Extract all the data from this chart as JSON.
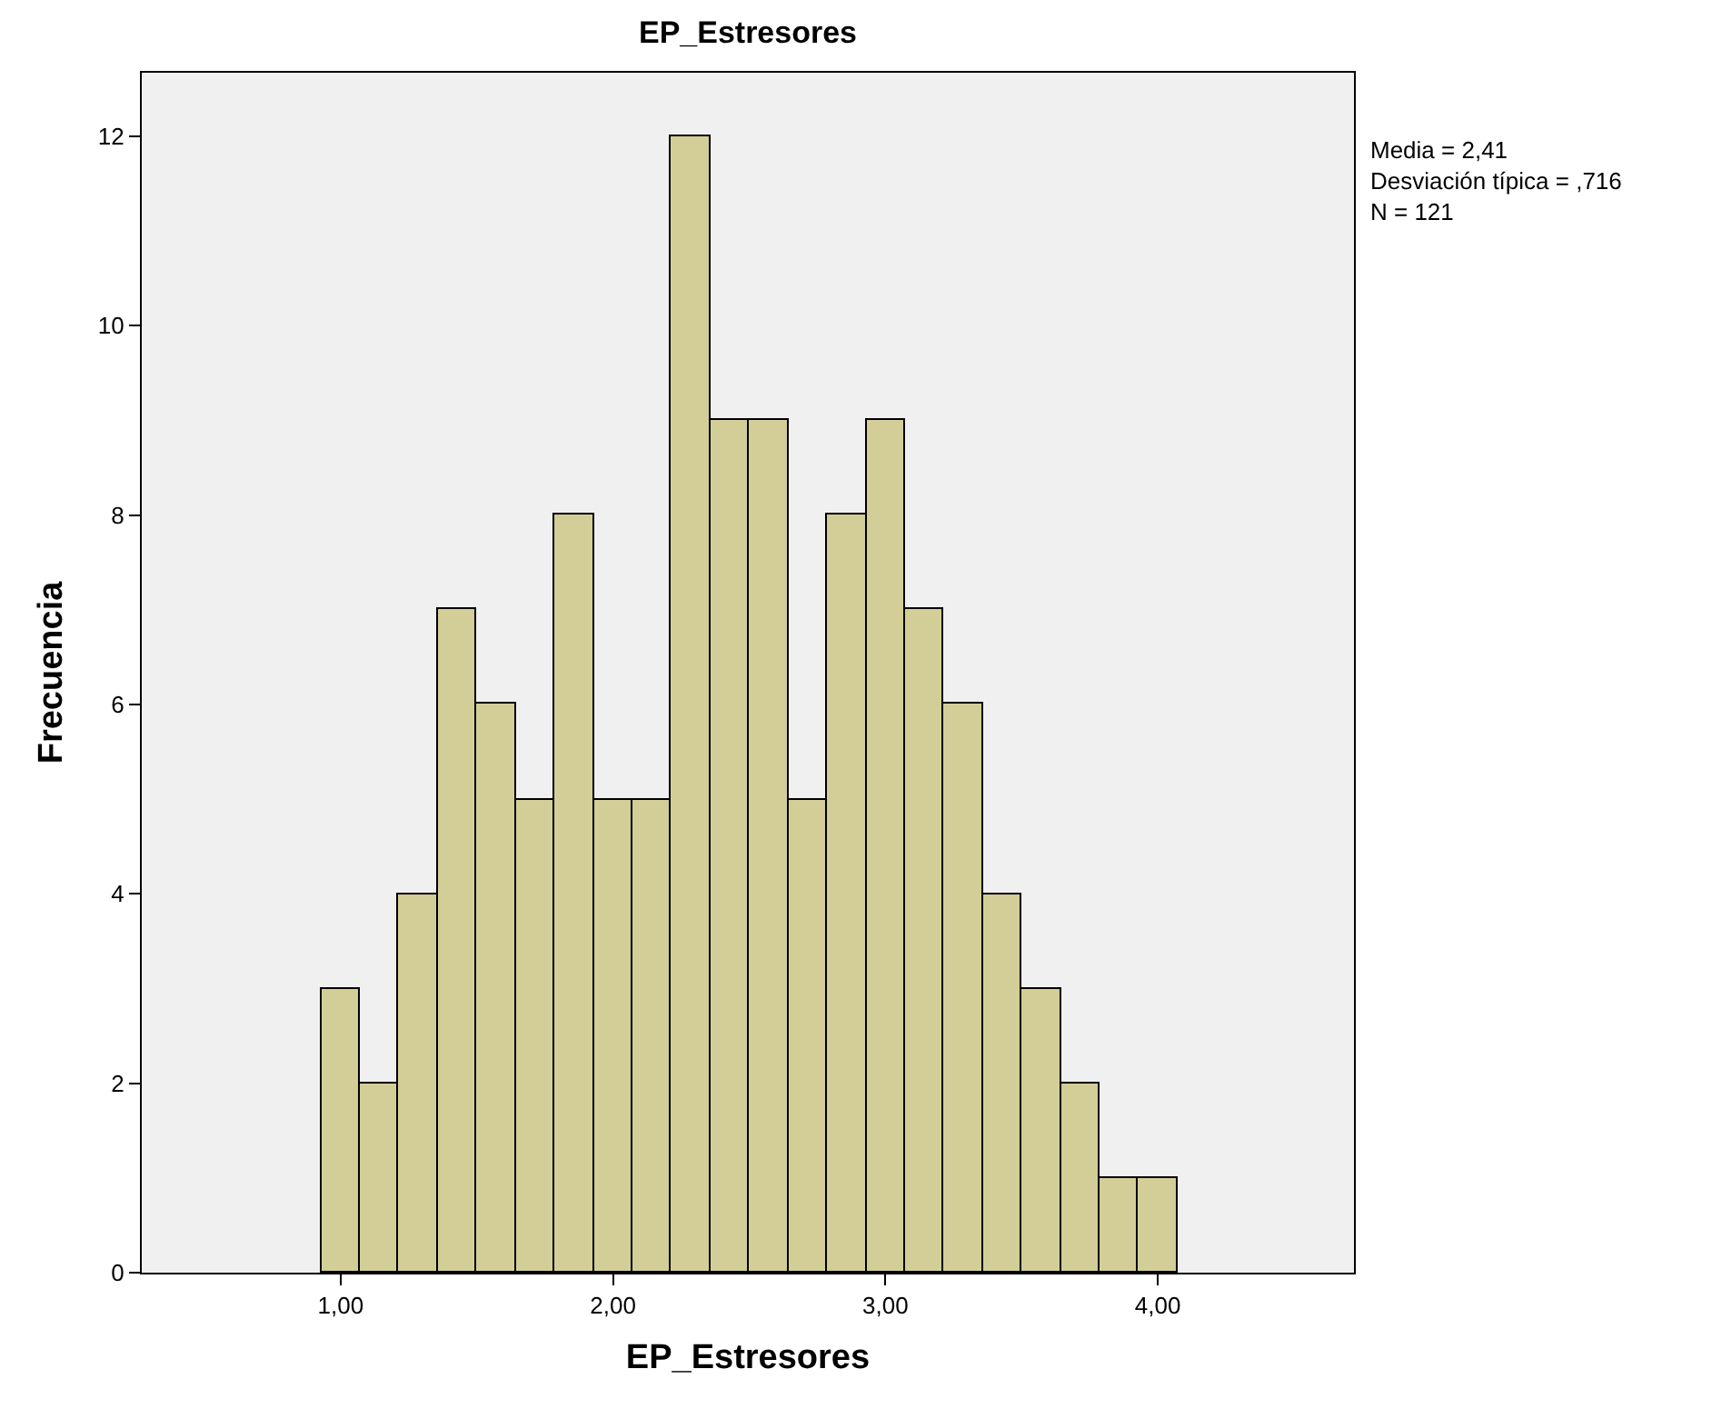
{
  "chart_data": {
    "type": "histogram",
    "title": "EP_Estresores",
    "xlabel": "EP_Estresores",
    "ylabel": "Frecuencia",
    "bins": [
      0.929,
      1.071,
      1.214,
      1.357,
      1.5,
      1.643,
      1.786,
      1.929,
      2.071,
      2.214,
      2.357,
      2.5,
      2.643,
      2.786,
      2.929,
      3.071,
      3.214,
      3.357,
      3.5,
      3.643,
      3.786,
      3.929,
      4.071
    ],
    "values": [
      3,
      2,
      4,
      7,
      6,
      5,
      8,
      5,
      5,
      12,
      9,
      9,
      5,
      8,
      9,
      7,
      6,
      4,
      3,
      2,
      1,
      1
    ],
    "color": "#d3ce97",
    "xlim": [
      0.27,
      4.72
    ],
    "xticks": [
      {
        "value": 1,
        "label": "1,00"
      },
      {
        "value": 2,
        "label": "2,00"
      },
      {
        "value": 3,
        "label": "3,00"
      },
      {
        "value": 4,
        "label": "4,00"
      }
    ],
    "ylim": [
      0,
      12.67
    ],
    "yticks": [
      0,
      2,
      4,
      6,
      8,
      10,
      12
    ],
    "grid": false,
    "annotations": [
      "Media = 2,41\nDesviación típica = ,716\nN = 121"
    ]
  }
}
